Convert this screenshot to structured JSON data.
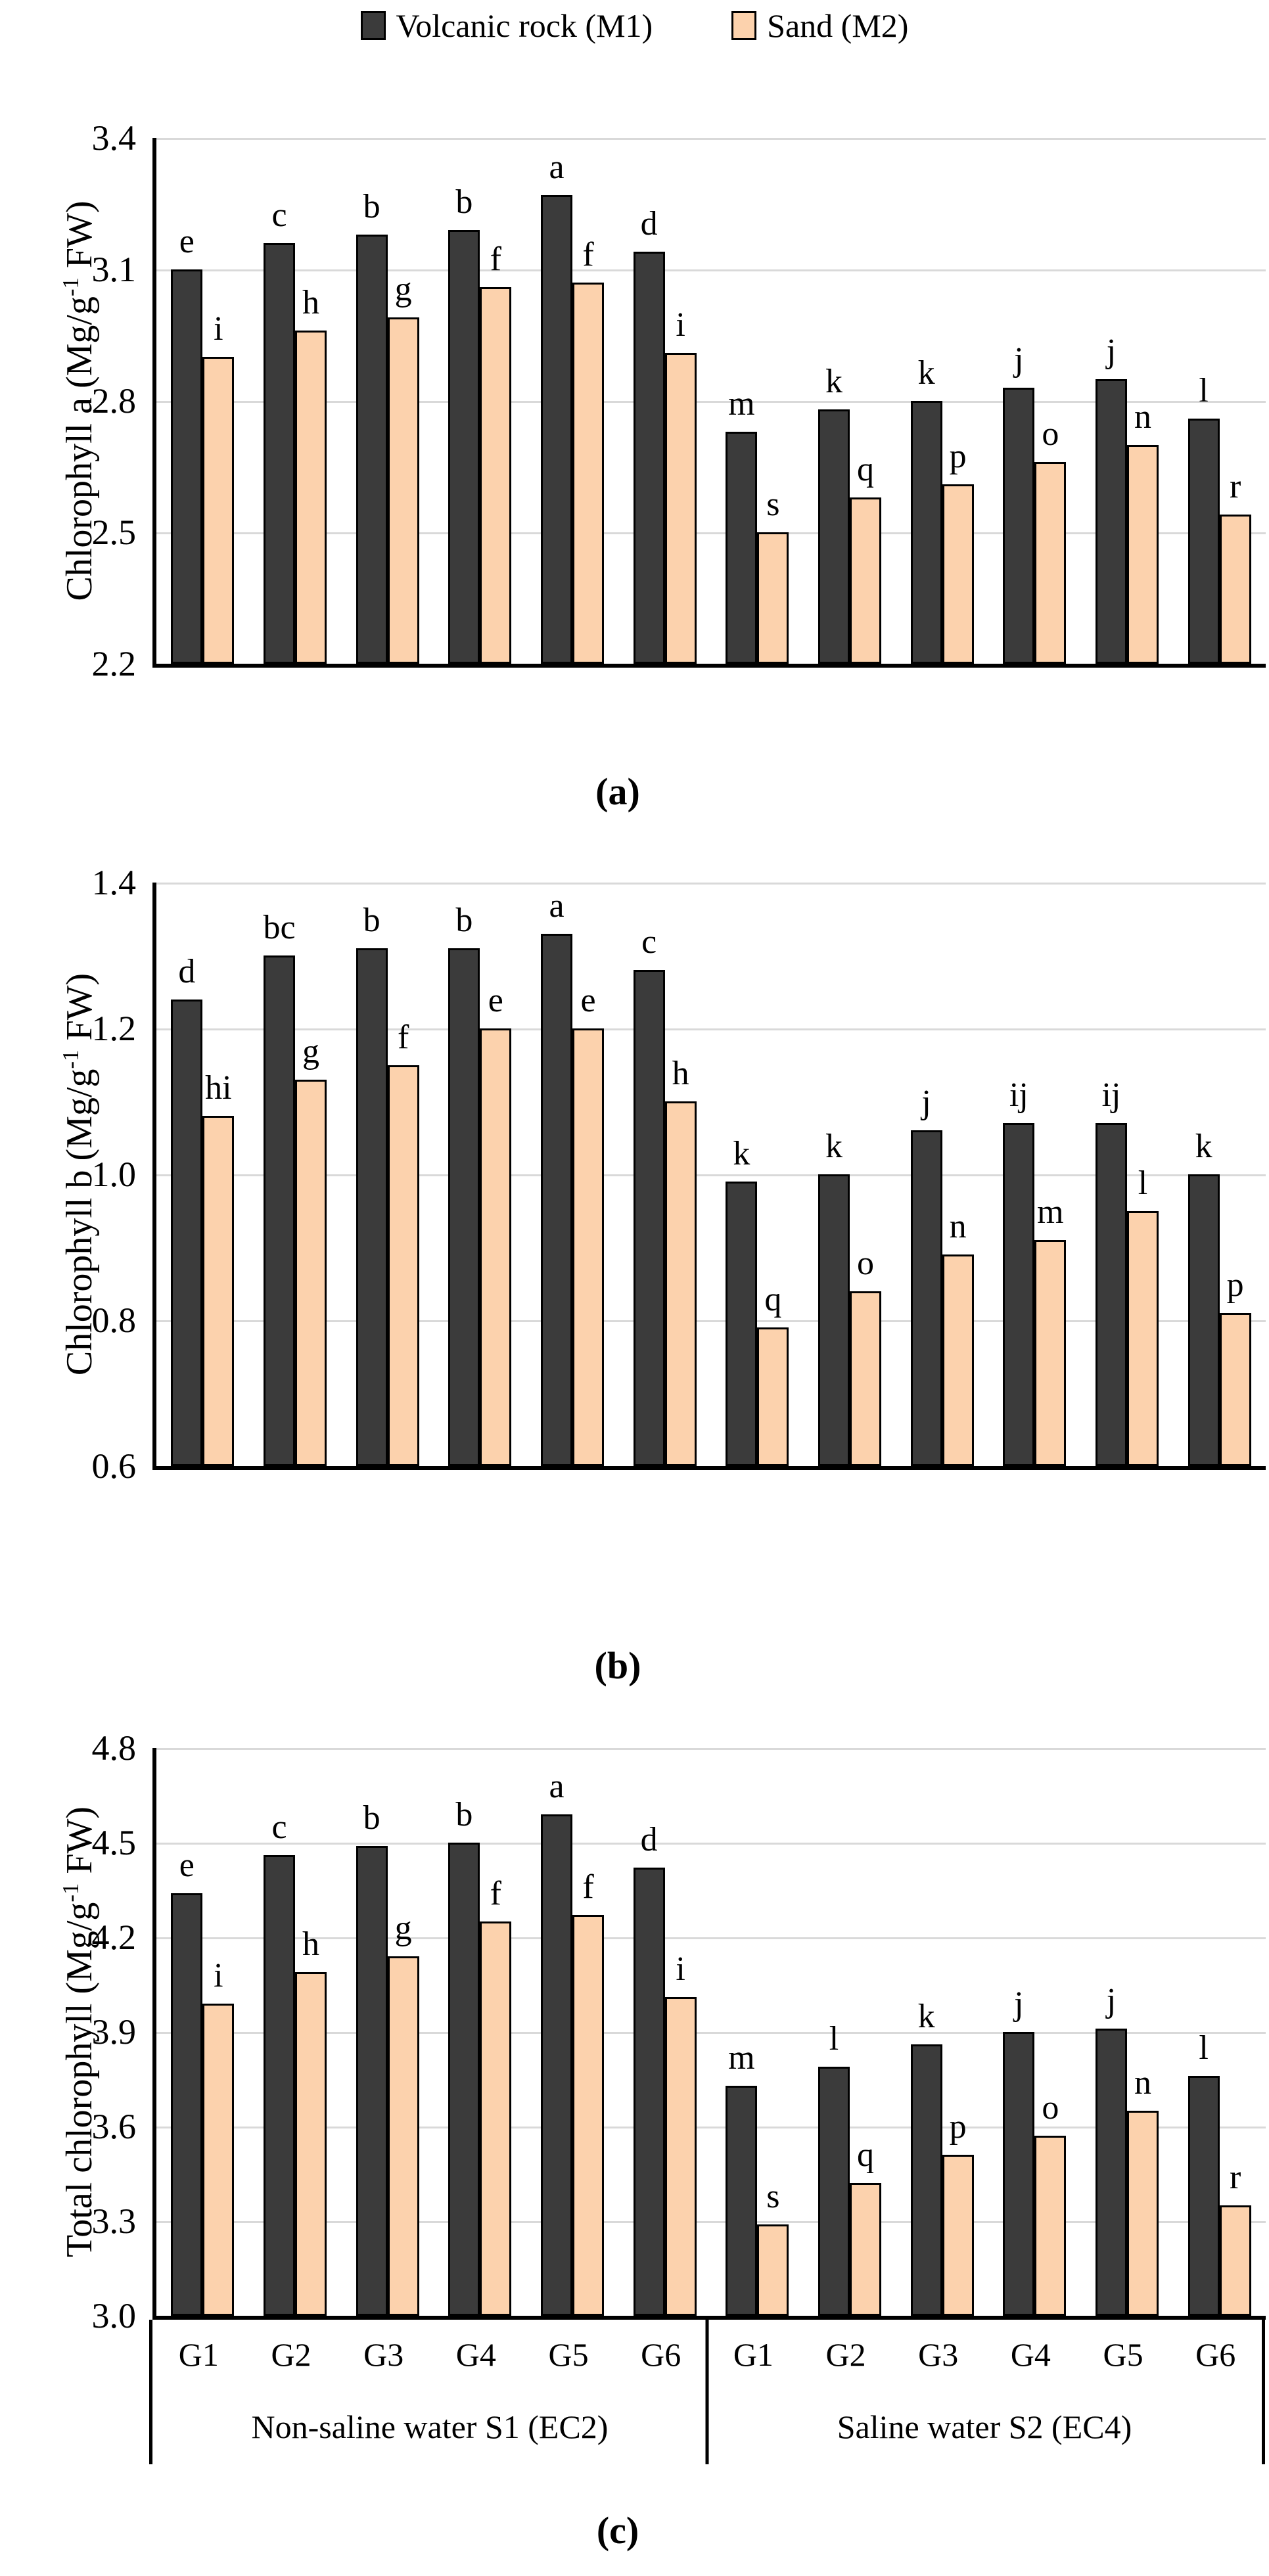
{
  "legend": {
    "items": [
      {
        "label": "Volcanic rock (M1)",
        "color": "#3B3B3B"
      },
      {
        "label": "Sand (M2)",
        "color": "#FCD2AD"
      }
    ]
  },
  "captions": [
    "(a)",
    "(b)",
    "(c)"
  ],
  "colors": {
    "bar_dark": "#3B3B3B",
    "bar_sand": "#FCD2AD",
    "bar_border": "#000000",
    "gridline": "#D9D9D9",
    "axis": "#000000"
  },
  "chart_data": [
    {
      "type": "bar",
      "title": "",
      "ylabel_pre": "Chlorophyll a (Mg/g",
      "ylabel_sup": "-1",
      "ylabel_post": " FW)",
      "ylim": [
        2.2,
        3.4
      ],
      "yticks": [
        "3.4",
        "3.1",
        "2.8",
        "2.5",
        "2.2"
      ],
      "grid": true,
      "legend_position": "top",
      "show_x_axis_labels": false,
      "categories": [
        "G1",
        "G2",
        "G3",
        "G4",
        "G5",
        "G6",
        "G1",
        "G2",
        "G3",
        "G4",
        "G5",
        "G6"
      ],
      "groups": [
        {
          "label": "Non-saline water S1 (EC2)",
          "span": 6
        },
        {
          "label": "Saline water S2 (EC4)",
          "span": 6
        }
      ],
      "series": [
        {
          "name": "Volcanic rock (M1)",
          "values": [
            3.1,
            3.16,
            3.18,
            3.19,
            3.27,
            3.14,
            2.73,
            2.78,
            2.8,
            2.83,
            2.85,
            2.76
          ],
          "letters": [
            "e",
            "c",
            "b",
            "b",
            "a",
            "d",
            "m",
            "k",
            "k",
            "j",
            "j",
            "l"
          ]
        },
        {
          "name": "Sand (M2)",
          "values": [
            2.9,
            2.96,
            2.99,
            3.06,
            3.07,
            2.91,
            2.5,
            2.58,
            2.61,
            2.66,
            2.7,
            2.54
          ],
          "letters": [
            "i",
            "h",
            "g",
            "f",
            "f",
            "i",
            "s",
            "q",
            "p",
            "o",
            "n",
            "r"
          ]
        }
      ]
    },
    {
      "type": "bar",
      "title": "",
      "ylabel_pre": "Chlorophyll b (Mg/g",
      "ylabel_sup": "-1",
      "ylabel_post": " FW)",
      "ylim": [
        0.6,
        1.4
      ],
      "yticks": [
        "1.4",
        "1.2",
        "1.0",
        "0.8",
        "0.6"
      ],
      "grid": true,
      "legend_position": "top",
      "show_x_axis_labels": false,
      "categories": [
        "G1",
        "G2",
        "G3",
        "G4",
        "G5",
        "G6",
        "G1",
        "G2",
        "G3",
        "G4",
        "G5",
        "G6"
      ],
      "groups": [
        {
          "label": "Non-saline water S1 (EC2)",
          "span": 6
        },
        {
          "label": "Saline water S2 (EC4)",
          "span": 6
        }
      ],
      "series": [
        {
          "name": "Volcanic rock (M1)",
          "values": [
            1.24,
            1.3,
            1.31,
            1.31,
            1.33,
            1.28,
            0.99,
            1.0,
            1.06,
            1.07,
            1.07,
            1.0
          ],
          "letters": [
            "d",
            "bc",
            "b",
            "b",
            "a",
            "c",
            "k",
            "k",
            "j",
            "ij",
            "ij",
            "k"
          ]
        },
        {
          "name": "Sand (M2)",
          "values": [
            1.08,
            1.13,
            1.15,
            1.2,
            1.2,
            1.1,
            0.79,
            0.84,
            0.89,
            0.91,
            0.95,
            0.81
          ],
          "letters": [
            "hi",
            "g",
            "f",
            "e",
            "e",
            "h",
            "q",
            "o",
            "n",
            "m",
            "l",
            "p"
          ]
        }
      ]
    },
    {
      "type": "bar",
      "title": "",
      "ylabel_pre": "Total chlorophyll (Mg/g",
      "ylabel_sup": "-1",
      "ylabel_post": " FW)",
      "ylim": [
        3.0,
        4.8
      ],
      "yticks": [
        "4.8",
        "4.5",
        "4.2",
        "3.9",
        "3.6",
        "3.3",
        "3.0"
      ],
      "grid": true,
      "legend_position": "top",
      "show_x_axis_labels": true,
      "categories": [
        "G1",
        "G2",
        "G3",
        "G4",
        "G5",
        "G6",
        "G1",
        "G2",
        "G3",
        "G4",
        "G5",
        "G6"
      ],
      "groups": [
        {
          "label": "Non-saline water S1 (EC2)",
          "span": 6
        },
        {
          "label": "Saline water S2 (EC4)",
          "span": 6
        }
      ],
      "series": [
        {
          "name": "Volcanic rock (M1)",
          "values": [
            4.34,
            4.46,
            4.49,
            4.5,
            4.59,
            4.42,
            3.73,
            3.79,
            3.86,
            3.9,
            3.91,
            3.76
          ],
          "letters": [
            "e",
            "c",
            "b",
            "b",
            "a",
            "d",
            "m",
            "l",
            "k",
            "j",
            "j",
            "l"
          ]
        },
        {
          "name": "Sand (M2)",
          "values": [
            3.99,
            4.09,
            4.14,
            4.25,
            4.27,
            4.01,
            3.29,
            3.42,
            3.51,
            3.57,
            3.65,
            3.35
          ],
          "letters": [
            "i",
            "h",
            "g",
            "f",
            "f",
            "i",
            "s",
            "q",
            "p",
            "o",
            "n",
            "r"
          ]
        }
      ]
    }
  ]
}
